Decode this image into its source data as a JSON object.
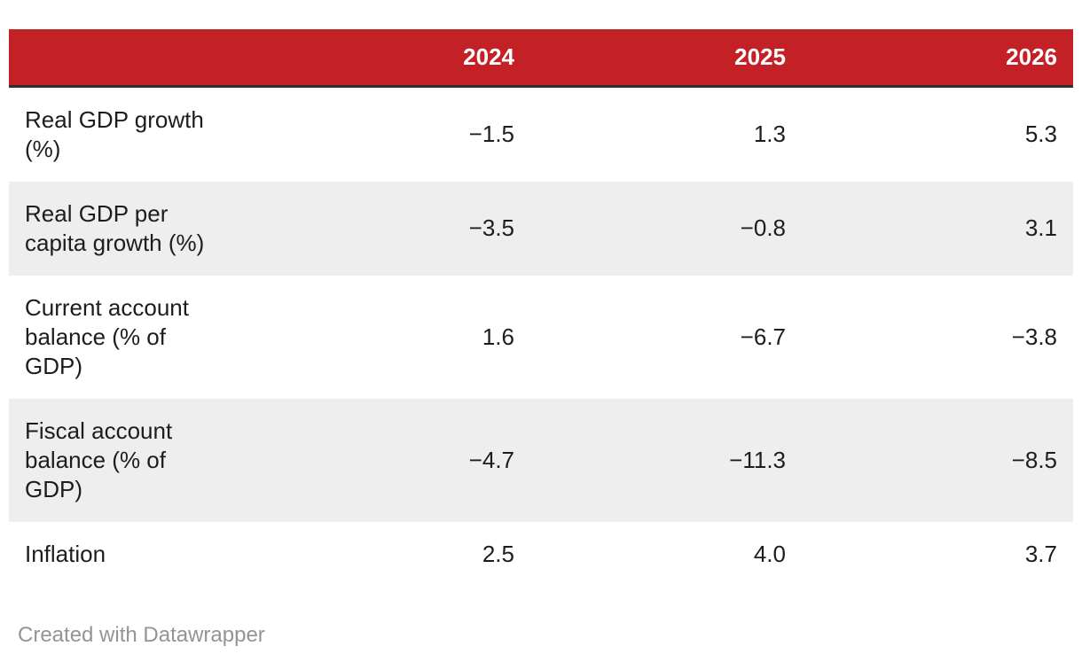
{
  "table": {
    "header": [
      "",
      "2024",
      "2025",
      "2026"
    ],
    "rows": [
      {
        "label": "Real GDP growth (%)",
        "display": [
          "−1.5",
          "1.3",
          "5.3"
        ]
      },
      {
        "label": "Real GDP per capita growth (%)",
        "display": [
          "−3.5",
          "−0.8",
          "3.1"
        ]
      },
      {
        "label": "Current account balance (% of GDP)",
        "display": [
          "1.6",
          "−6.7",
          "−3.8"
        ]
      },
      {
        "label": "Fiscal account balance (% of GDP)",
        "display": [
          "−4.7",
          "−11.3",
          "−8.5"
        ]
      },
      {
        "label": "Inflation",
        "display": [
          "2.5",
          "4.0",
          "3.7"
        ]
      }
    ]
  },
  "footer": {
    "credit": "Created with Datawrapper"
  },
  "colors": {
    "header_bg": "#c42127",
    "header_text": "#ffffff",
    "header_border": "#2f2f2f",
    "stripe": "#eeeeee",
    "text": "#1d1d1d",
    "credit": "#949494"
  },
  "chart_data": {
    "type": "table",
    "columns": [
      "",
      "2024",
      "2025",
      "2026"
    ],
    "rows": [
      {
        "label": "Real GDP growth (%)",
        "values": [
          -1.5,
          1.3,
          5.3
        ]
      },
      {
        "label": "Real GDP per capita growth (%)",
        "values": [
          -3.5,
          -0.8,
          3.1
        ]
      },
      {
        "label": "Current account balance (% of GDP)",
        "values": [
          1.6,
          -6.7,
          -3.8
        ]
      },
      {
        "label": "Fiscal account balance (% of GDP)",
        "values": [
          -4.7,
          -11.3,
          -8.5
        ]
      },
      {
        "label": "Inflation",
        "values": [
          2.5,
          4.0,
          3.7
        ]
      }
    ],
    "title": "",
    "legend_position": "none",
    "grid": "zebra-stripes"
  }
}
